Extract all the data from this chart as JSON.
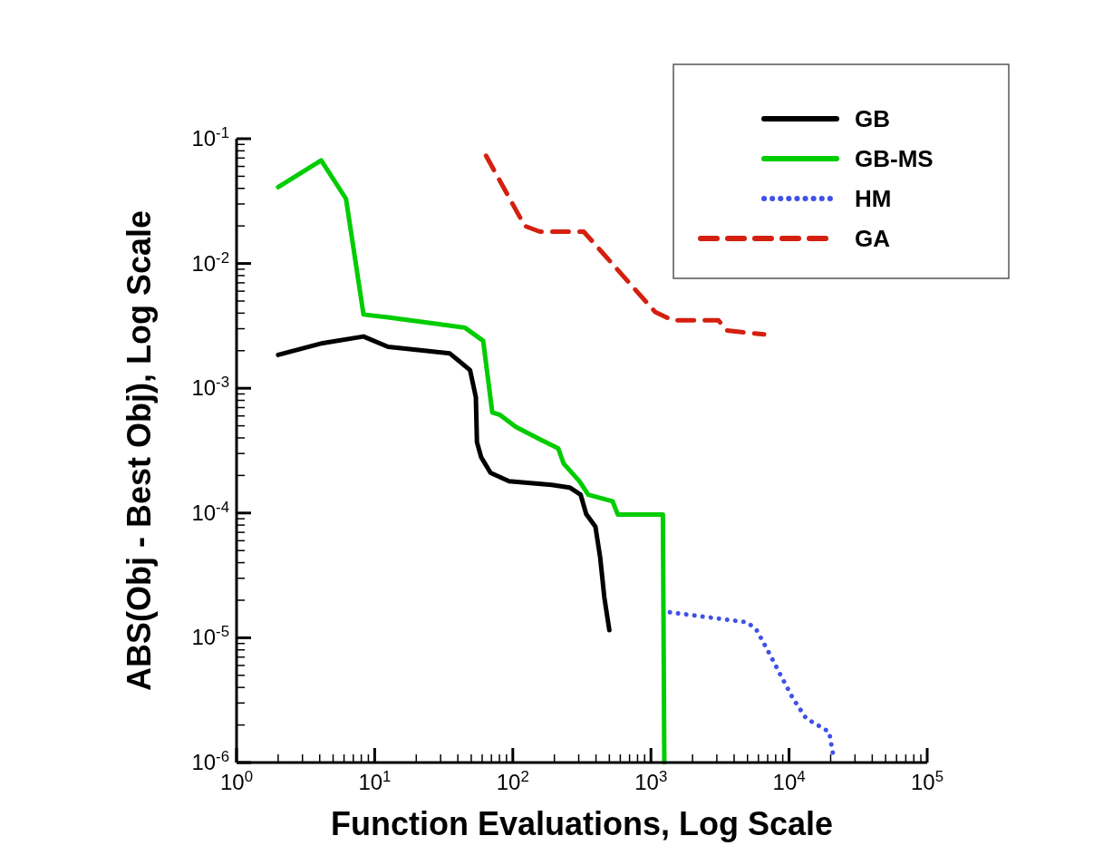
{
  "chart_data": {
    "type": "line",
    "xlabel": "Function Evaluations, Log Scale",
    "ylabel": "ABS(Obj - Best Obj), Log Scale",
    "log": "xy",
    "grid": false,
    "legend": "top right",
    "marker": "none",
    "xlim": [
      1,
      100000
    ],
    "ylim": [
      1e-06,
      0.1
    ],
    "xticks": [
      {
        "value": 1,
        "label": "10$^{0}$"
      },
      {
        "value": 10,
        "label": "10$^{1}$"
      },
      {
        "value": 100,
        "label": "10$^{2}$"
      },
      {
        "value": 1000,
        "label": "10$^{3}$"
      },
      {
        "value": 10000,
        "label": "10$^{4}$"
      },
      {
        "value": 100000,
        "label": "10$^{5}$"
      }
    ],
    "yticks": [
      {
        "value": 1e-06,
        "label": "10$^{-6}$"
      },
      {
        "value": 1e-05,
        "label": "10$^{-5}$"
      },
      {
        "value": 0.0001,
        "label": "10$^{-4}$"
      },
      {
        "value": 0.001,
        "label": "10$^{-3}$"
      },
      {
        "value": 0.01,
        "label": "10$^{-2}$"
      },
      {
        "value": 0.1,
        "label": "10$^{-1}$"
      }
    ],
    "series": [
      {
        "name": "GB",
        "color": "#000000",
        "line_style": "solid",
        "x": [
          2,
          4.2,
          8.3,
          12.5,
          23,
          35,
          49,
          54,
          55,
          59,
          69,
          94,
          191,
          258,
          310,
          340,
          396,
          429,
          460,
          500
        ],
        "values": [
          0.00185,
          0.0023,
          0.0026,
          0.00215,
          0.002,
          0.0019,
          0.0014,
          0.00085,
          0.00037,
          0.00028,
          0.00021,
          0.00018,
          0.000168,
          0.00016,
          0.00014,
          9.8e-05,
          7.8e-05,
          4.4e-05,
          2.1e-05,
          1.15e-05
        ]
      },
      {
        "name": "GB-MS",
        "color": "#00cc00",
        "line_style": "solid",
        "x": [
          2,
          4.1,
          6.2,
          8.3,
          12.5,
          26.8,
          45,
          61,
          71,
          81,
          105,
          157,
          213,
          233,
          303,
          352,
          528,
          576,
          1220,
          1250
        ],
        "values": [
          0.041,
          0.067,
          0.033,
          0.0039,
          0.0037,
          0.0033,
          0.00306,
          0.0024,
          0.00064,
          0.00061,
          0.00049,
          0.00039,
          0.00033,
          0.00025,
          0.00018,
          0.00014,
          0.000124,
          9.7e-05,
          9.7e-05,
          1e-06
        ]
      },
      {
        "name": "HM",
        "color": "#3f51e8",
        "line_style": "dotted",
        "x": [
          1370,
          5000,
          5800,
          7100,
          8700,
          10600,
          13300,
          19500,
          21000
        ],
        "values": [
          1.6e-05,
          1.33e-05,
          1.16e-05,
          7.7e-06,
          5e-06,
          3.3e-06,
          2.26e-06,
          1.76e-06,
          1.1e-06
        ]
      },
      {
        "name": "GA",
        "color": "#d42010",
        "line_style": "dashed",
        "x": [
          64,
          122,
          157,
          326,
          1070,
          1440,
          3080,
          3550,
          6600
        ],
        "values": [
          0.073,
          0.02,
          0.018,
          0.018,
          0.0041,
          0.0035,
          0.0035,
          0.0029,
          0.0027
        ]
      }
    ]
  }
}
